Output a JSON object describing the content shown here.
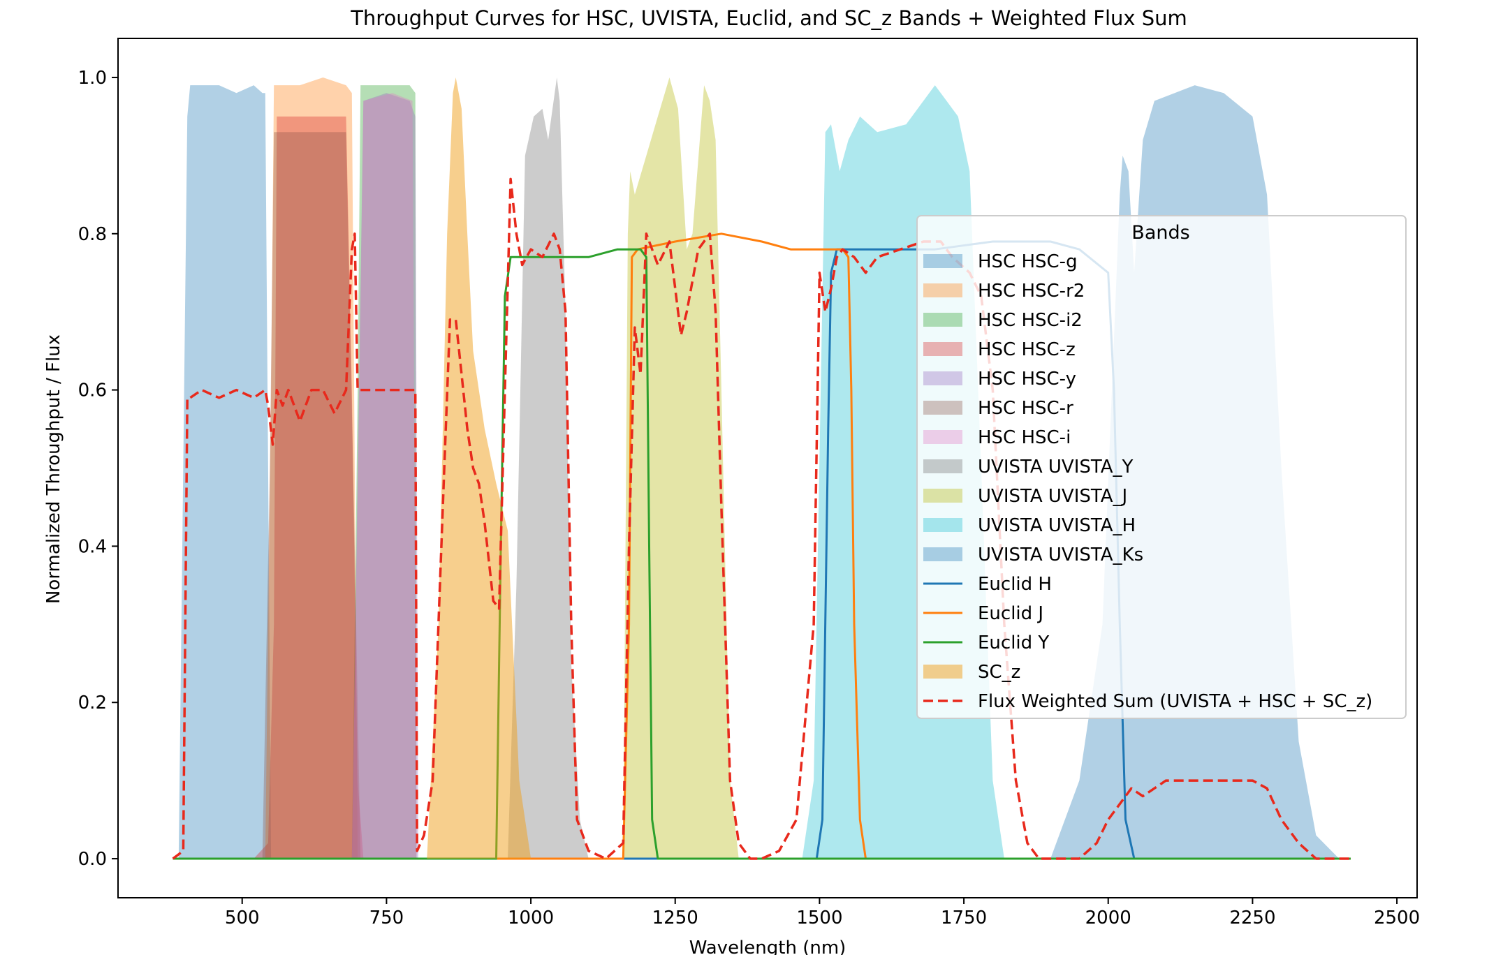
{
  "chart_data": {
    "type": "area",
    "title": "Throughput Curves for HSC, UVISTA, Euclid, and SC_z Bands + Weighted Flux Sum",
    "xlabel": "Wavelength (nm)",
    "ylabel": "Normalized Throughput / Flux",
    "xlim": [
      285,
      2535
    ],
    "ylim": [
      -0.05,
      1.05
    ],
    "xticks": [
      500,
      750,
      1000,
      1250,
      1500,
      1750,
      2000,
      2250,
      2500
    ],
    "xtick_labels": [
      "500",
      "750",
      "1000",
      "1250",
      "1500",
      "1750",
      "2000",
      "2250",
      "2500"
    ],
    "yticks": [
      0.0,
      0.2,
      0.4,
      0.6,
      0.8,
      1.0
    ],
    "ytick_labels": [
      "0.0",
      "0.2",
      "0.4",
      "0.6",
      "0.8",
      "1.0"
    ],
    "legend_title": "Bands",
    "legend_position": "center-right",
    "grid": false,
    "series": [
      {
        "name": "HSC HSC-g",
        "kind": "fill",
        "color": "#1f77b4",
        "opacity": 0.35,
        "x": [
          390,
          405,
          410,
          430,
          460,
          490,
          520,
          535,
          540,
          545,
          550
        ],
        "y": [
          0,
          0.95,
          0.99,
          0.99,
          0.99,
          0.98,
          0.99,
          0.98,
          0.98,
          0.5,
          0
        ]
      },
      {
        "name": "HSC HSC-r2",
        "kind": "fill",
        "color": "#ff7f0e",
        "opacity": 0.35,
        "x": [
          540,
          550,
          555,
          570,
          600,
          640,
          680,
          690,
          695,
          700
        ],
        "y": [
          0,
          0.6,
          0.99,
          0.99,
          0.99,
          1.0,
          0.99,
          0.98,
          0.5,
          0
        ]
      },
      {
        "name": "HSC HSC-i2",
        "kind": "fill",
        "color": "#2ca02c",
        "opacity": 0.35,
        "x": [
          690,
          700,
          705,
          720,
          760,
          790,
          800,
          802
        ],
        "y": [
          0,
          0.6,
          0.99,
          0.99,
          0.99,
          0.99,
          0.98,
          0
        ]
      },
      {
        "name": "HSC HSC-z",
        "kind": "fill",
        "color": "#d62728",
        "opacity": 0.35,
        "x": [
          520,
          545,
          555,
          560,
          600,
          650,
          680,
          690,
          700,
          710
        ],
        "y": [
          0,
          0.02,
          0.3,
          0.95,
          0.95,
          0.95,
          0.95,
          0.6,
          0.1,
          0
        ]
      },
      {
        "name": "HSC HSC-y",
        "kind": "fill",
        "color": "#9467bd",
        "opacity": 0.35,
        "x": [
          690,
          700,
          710,
          750,
          790,
          800,
          805
        ],
        "y": [
          0,
          0.5,
          0.97,
          0.98,
          0.97,
          0.95,
          0
        ]
      },
      {
        "name": "HSC HSC-r",
        "kind": "fill",
        "color": "#8c564b",
        "opacity": 0.35,
        "x": [
          535,
          548,
          555,
          600,
          650,
          680,
          695,
          705
        ],
        "y": [
          0,
          0.5,
          0.93,
          0.93,
          0.93,
          0.93,
          0.4,
          0
        ]
      },
      {
        "name": "HSC HSC-i",
        "kind": "fill",
        "color": "#e377c2",
        "opacity": 0.35,
        "x": [
          690,
          703,
          710,
          760,
          795,
          802
        ],
        "y": [
          0,
          0.6,
          0.97,
          0.98,
          0.97,
          0
        ]
      },
      {
        "name": "UVISTA UVISTA_Y",
        "kind": "fill",
        "color": "#7f7f7f",
        "opacity": 0.4,
        "x": [
          960,
          975,
          990,
          1005,
          1020,
          1030,
          1045,
          1050,
          1060,
          1070,
          1085,
          1100
        ],
        "y": [
          0,
          0.35,
          0.9,
          0.95,
          0.96,
          0.92,
          1.0,
          0.97,
          0.7,
          0.25,
          0.05,
          0
        ]
      },
      {
        "name": "UVISTA UVISTA_J",
        "kind": "fill",
        "color": "#bcbd22",
        "opacity": 0.4,
        "x": [
          1160,
          1168,
          1172,
          1180,
          1200,
          1220,
          1240,
          1255,
          1270,
          1280,
          1300,
          1310,
          1320,
          1330,
          1345,
          1360
        ],
        "y": [
          0,
          0.8,
          0.88,
          0.85,
          0.9,
          0.95,
          1.0,
          0.96,
          0.78,
          0.8,
          0.99,
          0.97,
          0.92,
          0.6,
          0.1,
          0
        ]
      },
      {
        "name": "UVISTA UVISTA_H",
        "kind": "fill",
        "color": "#17becf",
        "opacity": 0.35,
        "x": [
          1470,
          1490,
          1510,
          1520,
          1535,
          1550,
          1570,
          1600,
          1650,
          1700,
          1720,
          1740,
          1760,
          1780,
          1800,
          1820
        ],
        "y": [
          0,
          0.1,
          0.93,
          0.94,
          0.88,
          0.92,
          0.95,
          0.93,
          0.94,
          0.99,
          0.97,
          0.95,
          0.88,
          0.5,
          0.1,
          0
        ]
      },
      {
        "name": "UVISTA UVISTA_Ks",
        "kind": "fill",
        "color": "#1f77b4",
        "opacity": 0.35,
        "x": [
          1900,
          1950,
          1990,
          2020,
          2025,
          2035,
          2045,
          2060,
          2080,
          2150,
          2200,
          2250,
          2275,
          2300,
          2330,
          2360,
          2400
        ],
        "y": [
          0,
          0.1,
          0.3,
          0.85,
          0.9,
          0.88,
          0.75,
          0.92,
          0.97,
          0.99,
          0.98,
          0.95,
          0.85,
          0.5,
          0.15,
          0.03,
          0
        ]
      },
      {
        "name": "Euclid H",
        "kind": "line",
        "color": "#1f77b4",
        "width": 3,
        "x": [
          380,
          1495,
          1505,
          1515,
          1520,
          1530,
          1560,
          1600,
          1650,
          1700,
          1800,
          1900,
          1950,
          2000,
          2010,
          2020,
          2030,
          2045,
          2420
        ],
        "y": [
          0,
          0,
          0.05,
          0.55,
          0.75,
          0.78,
          0.78,
          0.78,
          0.78,
          0.78,
          0.79,
          0.79,
          0.78,
          0.75,
          0.6,
          0.3,
          0.05,
          0,
          0
        ]
      },
      {
        "name": "Euclid J",
        "kind": "line",
        "color": "#ff7f0e",
        "width": 3,
        "x": [
          380,
          1160,
          1170,
          1175,
          1185,
          1250,
          1330,
          1400,
          1450,
          1500,
          1540,
          1550,
          1555,
          1560,
          1570,
          1580,
          2420
        ],
        "y": [
          0,
          0,
          0.3,
          0.77,
          0.78,
          0.79,
          0.8,
          0.79,
          0.78,
          0.78,
          0.78,
          0.77,
          0.6,
          0.3,
          0.05,
          0,
          0
        ]
      },
      {
        "name": "Euclid Y",
        "kind": "line",
        "color": "#2ca02c",
        "width": 3,
        "x": [
          380,
          940,
          948,
          955,
          965,
          1000,
          1050,
          1100,
          1150,
          1190,
          1200,
          1205,
          1210,
          1220,
          2420
        ],
        "y": [
          0,
          0,
          0.4,
          0.72,
          0.77,
          0.77,
          0.77,
          0.77,
          0.78,
          0.78,
          0.77,
          0.4,
          0.05,
          0,
          0
        ]
      },
      {
        "name": "SC_z",
        "kind": "fill",
        "color": "#f0a01c",
        "opacity": 0.5,
        "x": [
          820,
          840,
          855,
          865,
          870,
          880,
          890,
          900,
          920,
          940,
          960,
          980,
          1000
        ],
        "y": [
          0,
          0.3,
          0.8,
          0.98,
          1.0,
          0.96,
          0.8,
          0.65,
          0.55,
          0.48,
          0.42,
          0.1,
          0
        ]
      },
      {
        "name": "Flux Weighted Sum (UVISTA + HSC + SC_z)",
        "kind": "dashed",
        "color": "#e8291c",
        "width": 3.5,
        "x": [
          380,
          398,
          405,
          410,
          430,
          460,
          490,
          520,
          540,
          545,
          553,
          560,
          570,
          580,
          600,
          620,
          640,
          660,
          680,
          690,
          695,
          700,
          710,
          750,
          790,
          800,
          803,
          815,
          830,
          850,
          860,
          870,
          880,
          890,
          900,
          910,
          920,
          935,
          945,
          955,
          965,
          975,
          985,
          1000,
          1020,
          1040,
          1050,
          1060,
          1070,
          1080,
          1100,
          1130,
          1160,
          1170,
          1180,
          1190,
          1200,
          1210,
          1220,
          1240,
          1260,
          1270,
          1290,
          1310,
          1320,
          1330,
          1345,
          1360,
          1380,
          1400,
          1430,
          1460,
          1490,
          1500,
          1510,
          1520,
          1530,
          1540,
          1560,
          1580,
          1600,
          1640,
          1680,
          1710,
          1730,
          1760,
          1780,
          1800,
          1820,
          1840,
          1860,
          1880,
          1900,
          1950,
          1980,
          2000,
          2020,
          2040,
          2060,
          2100,
          2150,
          2200,
          2250,
          2275,
          2300,
          2330,
          2360,
          2420
        ],
        "y": [
          0,
          0.01,
          0.59,
          0.59,
          0.6,
          0.59,
          0.6,
          0.59,
          0.6,
          0.58,
          0.53,
          0.6,
          0.58,
          0.6,
          0.56,
          0.6,
          0.6,
          0.57,
          0.6,
          0.78,
          0.8,
          0.6,
          0.6,
          0.6,
          0.6,
          0.6,
          0.01,
          0.03,
          0.1,
          0.5,
          0.69,
          0.69,
          0.62,
          0.55,
          0.5,
          0.48,
          0.43,
          0.33,
          0.32,
          0.6,
          0.87,
          0.8,
          0.76,
          0.78,
          0.77,
          0.8,
          0.78,
          0.7,
          0.3,
          0.05,
          0.01,
          0.0,
          0.02,
          0.4,
          0.68,
          0.62,
          0.8,
          0.78,
          0.76,
          0.79,
          0.67,
          0.7,
          0.78,
          0.8,
          0.7,
          0.45,
          0.1,
          0.02,
          0.0,
          0.0,
          0.01,
          0.05,
          0.3,
          0.75,
          0.7,
          0.73,
          0.77,
          0.78,
          0.77,
          0.75,
          0.77,
          0.78,
          0.79,
          0.79,
          0.77,
          0.75,
          0.72,
          0.6,
          0.3,
          0.1,
          0.02,
          0.0,
          0.0,
          0.0,
          0.02,
          0.05,
          0.07,
          0.09,
          0.08,
          0.1,
          0.1,
          0.1,
          0.1,
          0.09,
          0.05,
          0.02,
          0.0,
          0.0
        ]
      }
    ]
  }
}
